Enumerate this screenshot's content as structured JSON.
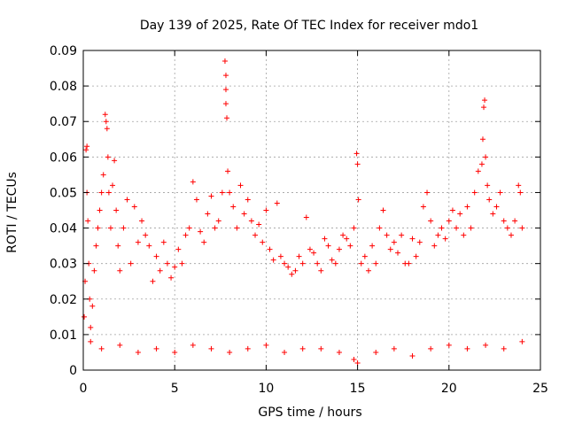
{
  "chart_data": {
    "type": "scatter",
    "title": "Day 139 of 2025, Rate Of TEC Index for receiver mdo1",
    "xlabel": "GPS time / hours",
    "ylabel": "ROTI / TECUs",
    "xlim": [
      0,
      25
    ],
    "ylim": [
      0,
      0.09
    ],
    "xticks": [
      0,
      5,
      10,
      15,
      20,
      25
    ],
    "yticks": [
      0,
      0.01,
      0.02,
      0.03,
      0.04,
      0.05,
      0.06,
      0.07,
      0.08,
      0.09
    ],
    "xtick_labels": [
      "0",
      "5",
      "10",
      "15",
      "20",
      "25"
    ],
    "ytick_labels": [
      "0",
      "0.01",
      "0.02",
      "0.03",
      "0.04",
      "0.05",
      "0.06",
      "0.07",
      "0.08",
      "0.09"
    ],
    "grid": true,
    "marker": "plus",
    "series": [
      {
        "color": "#ff0000",
        "points": [
          [
            0.05,
            0.015
          ],
          [
            0.1,
            0.025
          ],
          [
            0.15,
            0.062
          ],
          [
            0.2,
            0.063
          ],
          [
            0.2,
            0.05
          ],
          [
            0.25,
            0.042
          ],
          [
            0.3,
            0.03
          ],
          [
            0.35,
            0.02
          ],
          [
            0.4,
            0.012
          ],
          [
            0.5,
            0.018
          ],
          [
            0.6,
            0.028
          ],
          [
            0.7,
            0.035
          ],
          [
            0.8,
            0.04
          ],
          [
            0.9,
            0.045
          ],
          [
            1.0,
            0.05
          ],
          [
            1.1,
            0.055
          ],
          [
            1.2,
            0.072
          ],
          [
            1.25,
            0.07
          ],
          [
            1.3,
            0.068
          ],
          [
            1.35,
            0.06
          ],
          [
            1.4,
            0.05
          ],
          [
            1.5,
            0.04
          ],
          [
            1.6,
            0.052
          ],
          [
            1.7,
            0.059
          ],
          [
            1.8,
            0.045
          ],
          [
            1.9,
            0.035
          ],
          [
            2.0,
            0.028
          ],
          [
            2.2,
            0.04
          ],
          [
            2.4,
            0.048
          ],
          [
            2.6,
            0.03
          ],
          [
            2.8,
            0.046
          ],
          [
            3.0,
            0.036
          ],
          [
            3.2,
            0.042
          ],
          [
            3.4,
            0.038
          ],
          [
            3.6,
            0.035
          ],
          [
            3.8,
            0.025
          ],
          [
            4.0,
            0.032
          ],
          [
            4.2,
            0.028
          ],
          [
            4.4,
            0.036
          ],
          [
            4.6,
            0.03
          ],
          [
            4.8,
            0.026
          ],
          [
            5.0,
            0.029
          ],
          [
            5.2,
            0.034
          ],
          [
            5.4,
            0.03
          ],
          [
            5.6,
            0.038
          ],
          [
            5.8,
            0.04
          ],
          [
            6.0,
            0.053
          ],
          [
            6.2,
            0.048
          ],
          [
            6.4,
            0.039
          ],
          [
            6.6,
            0.036
          ],
          [
            6.8,
            0.044
          ],
          [
            7.0,
            0.049
          ],
          [
            7.2,
            0.04
          ],
          [
            7.4,
            0.042
          ],
          [
            7.6,
            0.05
          ],
          [
            7.75,
            0.087
          ],
          [
            7.8,
            0.083
          ],
          [
            7.8,
            0.079
          ],
          [
            7.85,
            0.071
          ],
          [
            7.8,
            0.075
          ],
          [
            7.9,
            0.056
          ],
          [
            8.0,
            0.05
          ],
          [
            8.2,
            0.046
          ],
          [
            8.4,
            0.04
          ],
          [
            8.6,
            0.052
          ],
          [
            8.8,
            0.044
          ],
          [
            9.0,
            0.048
          ],
          [
            9.2,
            0.042
          ],
          [
            9.4,
            0.038
          ],
          [
            9.6,
            0.041
          ],
          [
            9.8,
            0.036
          ],
          [
            10.0,
            0.045
          ],
          [
            10.2,
            0.034
          ],
          [
            10.4,
            0.031
          ],
          [
            10.6,
            0.047
          ],
          [
            10.8,
            0.032
          ],
          [
            11.0,
            0.03
          ],
          [
            11.2,
            0.029
          ],
          [
            11.4,
            0.027
          ],
          [
            11.6,
            0.028
          ],
          [
            11.8,
            0.032
          ],
          [
            12.0,
            0.03
          ],
          [
            12.2,
            0.043
          ],
          [
            12.4,
            0.034
          ],
          [
            12.6,
            0.033
          ],
          [
            12.8,
            0.03
          ],
          [
            13.0,
            0.028
          ],
          [
            13.2,
            0.037
          ],
          [
            13.4,
            0.035
          ],
          [
            13.6,
            0.031
          ],
          [
            13.8,
            0.03
          ],
          [
            14.0,
            0.034
          ],
          [
            14.2,
            0.038
          ],
          [
            14.4,
            0.037
          ],
          [
            14.6,
            0.035
          ],
          [
            14.8,
            0.04
          ],
          [
            14.95,
            0.061
          ],
          [
            15.0,
            0.058
          ],
          [
            15.05,
            0.048
          ],
          [
            15.2,
            0.03
          ],
          [
            15.4,
            0.032
          ],
          [
            15.6,
            0.028
          ],
          [
            15.8,
            0.035
          ],
          [
            16.0,
            0.03
          ],
          [
            16.2,
            0.04
          ],
          [
            16.4,
            0.045
          ],
          [
            16.6,
            0.038
          ],
          [
            16.8,
            0.034
          ],
          [
            17.0,
            0.036
          ],
          [
            17.2,
            0.033
          ],
          [
            17.4,
            0.038
          ],
          [
            17.6,
            0.03
          ],
          [
            17.8,
            0.03
          ],
          [
            18.0,
            0.037
          ],
          [
            18.2,
            0.032
          ],
          [
            18.4,
            0.036
          ],
          [
            18.6,
            0.046
          ],
          [
            18.8,
            0.05
          ],
          [
            19.0,
            0.042
          ],
          [
            19.2,
            0.035
          ],
          [
            19.4,
            0.038
          ],
          [
            19.6,
            0.04
          ],
          [
            19.8,
            0.037
          ],
          [
            20.0,
            0.042
          ],
          [
            20.2,
            0.045
          ],
          [
            20.4,
            0.04
          ],
          [
            20.6,
            0.044
          ],
          [
            20.8,
            0.038
          ],
          [
            21.0,
            0.046
          ],
          [
            21.2,
            0.04
          ],
          [
            21.4,
            0.05
          ],
          [
            21.6,
            0.056
          ],
          [
            21.8,
            0.058
          ],
          [
            21.85,
            0.065
          ],
          [
            21.9,
            0.074
          ],
          [
            21.95,
            0.076
          ],
          [
            22.0,
            0.06
          ],
          [
            22.1,
            0.052
          ],
          [
            22.2,
            0.048
          ],
          [
            22.4,
            0.044
          ],
          [
            22.6,
            0.046
          ],
          [
            22.8,
            0.05
          ],
          [
            23.0,
            0.042
          ],
          [
            23.2,
            0.04
          ],
          [
            23.4,
            0.038
          ],
          [
            23.6,
            0.042
          ],
          [
            23.8,
            0.052
          ],
          [
            23.9,
            0.05
          ],
          [
            24.0,
            0.04
          ],
          [
            0.4,
            0.008
          ],
          [
            1.0,
            0.006
          ],
          [
            2.0,
            0.007
          ],
          [
            3.0,
            0.005
          ],
          [
            4.0,
            0.006
          ],
          [
            5.0,
            0.005
          ],
          [
            6.0,
            0.007
          ],
          [
            7.0,
            0.006
          ],
          [
            8.0,
            0.005
          ],
          [
            9.0,
            0.006
          ],
          [
            10.0,
            0.007
          ],
          [
            11.0,
            0.005
          ],
          [
            12.0,
            0.006
          ],
          [
            13.0,
            0.006
          ],
          [
            14.0,
            0.005
          ],
          [
            14.8,
            0.003
          ],
          [
            15.0,
            0.002
          ],
          [
            16.0,
            0.005
          ],
          [
            17.0,
            0.006
          ],
          [
            18.0,
            0.004
          ],
          [
            19.0,
            0.006
          ],
          [
            20.0,
            0.007
          ],
          [
            21.0,
            0.006
          ],
          [
            22.0,
            0.007
          ],
          [
            23.0,
            0.006
          ],
          [
            24.0,
            0.008
          ]
        ]
      }
    ]
  }
}
